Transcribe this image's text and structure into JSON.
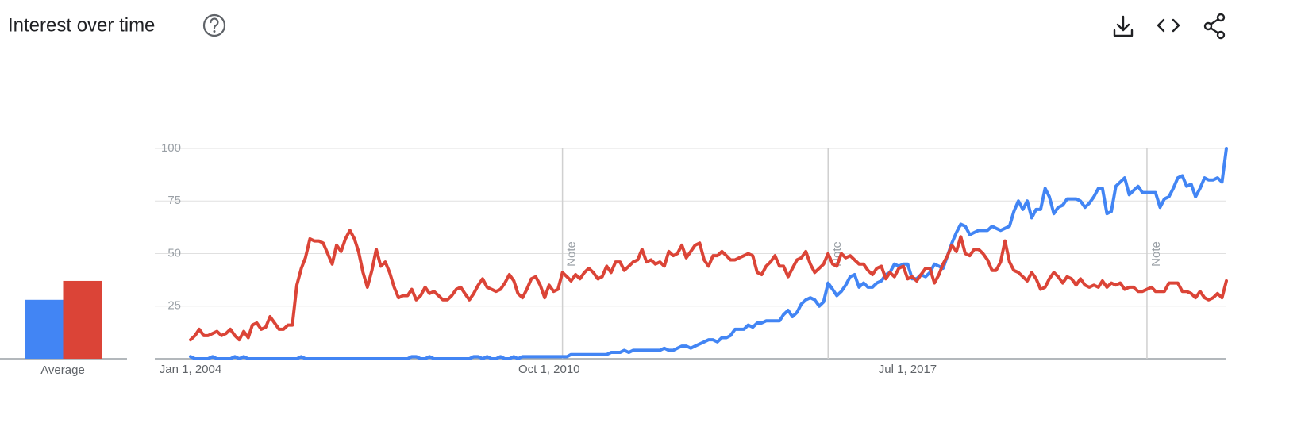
{
  "chart_data": {
    "type": "line",
    "title": "Interest over time",
    "x": [
      "2004-01-01",
      "2004-02-01",
      "2004-03-01",
      "2004-04-01",
      "2004-05-01",
      "2004-06-01",
      "2004-07-01",
      "2004-08-01",
      "2004-09-01",
      "2004-10-01",
      "2004-11-01",
      "2004-12-01",
      "2005-01-01",
      "2005-02-01",
      "2005-03-01",
      "2005-04-01",
      "2005-05-01",
      "2005-06-01",
      "2005-07-01",
      "2005-08-01",
      "2005-09-01",
      "2005-10-01",
      "2005-11-01",
      "2005-12-01",
      "2006-01-01",
      "2006-02-01",
      "2006-03-01",
      "2006-04-01",
      "2006-05-01",
      "2006-06-01",
      "2006-07-01",
      "2006-08-01",
      "2006-09-01",
      "2006-10-01",
      "2006-11-01",
      "2006-12-01",
      "2007-01-01",
      "2007-02-01",
      "2007-03-01",
      "2007-04-01",
      "2007-05-01",
      "2007-06-01",
      "2007-07-01",
      "2007-08-01",
      "2007-09-01",
      "2007-10-01",
      "2007-11-01",
      "2007-12-01",
      "2008-01-01",
      "2008-02-01",
      "2008-03-01",
      "2008-04-01",
      "2008-05-01",
      "2008-06-01",
      "2008-07-01",
      "2008-08-01",
      "2008-09-01",
      "2008-10-01",
      "2008-11-01",
      "2008-12-01",
      "2009-01-01",
      "2009-02-01",
      "2009-03-01",
      "2009-04-01",
      "2009-05-01",
      "2009-06-01",
      "2009-07-01",
      "2009-08-01",
      "2009-09-01",
      "2009-10-01",
      "2009-11-01",
      "2009-12-01",
      "2010-01-01",
      "2010-02-01",
      "2010-03-01",
      "2010-04-01",
      "2010-05-01",
      "2010-06-01",
      "2010-07-01",
      "2010-08-01",
      "2010-09-01",
      "2010-10-01",
      "2010-11-01",
      "2010-12-01",
      "2011-01-01",
      "2011-02-01",
      "2011-03-01",
      "2011-04-01",
      "2011-05-01",
      "2011-06-01",
      "2011-07-01",
      "2011-08-01",
      "2011-09-01",
      "2011-10-01",
      "2011-11-01",
      "2011-12-01",
      "2012-01-01",
      "2012-02-01",
      "2012-03-01",
      "2012-04-01",
      "2012-05-01",
      "2012-06-01",
      "2012-07-01",
      "2012-08-01",
      "2012-09-01",
      "2012-10-01",
      "2012-11-01",
      "2012-12-01",
      "2013-01-01",
      "2013-02-01",
      "2013-03-01",
      "2013-04-01",
      "2013-05-01",
      "2013-06-01",
      "2013-07-01",
      "2013-08-01",
      "2013-09-01",
      "2013-10-01",
      "2013-11-01",
      "2013-12-01",
      "2014-01-01",
      "2014-02-01",
      "2014-03-01",
      "2014-04-01",
      "2014-05-01",
      "2014-06-01",
      "2014-07-01",
      "2014-08-01",
      "2014-09-01",
      "2014-10-01",
      "2014-11-01",
      "2014-12-01",
      "2015-01-01",
      "2015-02-01",
      "2015-03-01",
      "2015-04-01",
      "2015-05-01",
      "2015-06-01",
      "2015-07-01",
      "2015-08-01",
      "2015-09-01",
      "2015-10-01",
      "2015-11-01",
      "2015-12-01",
      "2016-01-01",
      "2016-02-01",
      "2016-03-01",
      "2016-04-01",
      "2016-05-01",
      "2016-06-01",
      "2016-07-01",
      "2016-08-01",
      "2016-09-01",
      "2016-10-01",
      "2016-11-01",
      "2016-12-01",
      "2017-01-01",
      "2017-02-01",
      "2017-03-01",
      "2017-04-01",
      "2017-05-01",
      "2017-06-01",
      "2017-07-01",
      "2017-08-01",
      "2017-09-01",
      "2017-10-01",
      "2017-11-01",
      "2017-12-01",
      "2018-01-01",
      "2018-02-01",
      "2018-03-01",
      "2018-04-01",
      "2018-05-01",
      "2018-06-01",
      "2018-07-01",
      "2018-08-01",
      "2018-09-01",
      "2018-10-01",
      "2018-11-01",
      "2018-12-01",
      "2019-01-01",
      "2019-02-01",
      "2019-03-01",
      "2019-04-01",
      "2019-05-01",
      "2019-06-01",
      "2019-07-01",
      "2019-08-01",
      "2019-09-01",
      "2019-10-01",
      "2019-11-01",
      "2019-12-01",
      "2020-01-01",
      "2020-02-01",
      "2020-03-01",
      "2020-04-01",
      "2020-05-01",
      "2020-06-01",
      "2020-07-01",
      "2020-08-01",
      "2020-09-01",
      "2020-10-01",
      "2020-11-01",
      "2020-12-01",
      "2021-01-01",
      "2021-02-01",
      "2021-03-01",
      "2021-04-01",
      "2021-05-01",
      "2021-06-01",
      "2021-07-01",
      "2021-08-01",
      "2021-09-01",
      "2021-10-01",
      "2021-11-01",
      "2021-12-01",
      "2022-01-01",
      "2022-02-01",
      "2022-03-01",
      "2022-04-01",
      "2022-05-01",
      "2022-06-01",
      "2022-07-01",
      "2022-08-01",
      "2022-09-01",
      "2022-10-01",
      "2022-11-01",
      "2022-12-01",
      "2023-01-01",
      "2023-02-01",
      "2023-03-01",
      "2023-04-01",
      "2023-05-01",
      "2023-06-01",
      "2023-07-01"
    ],
    "series": [
      {
        "color": "#4285f4",
        "values": [
          1,
          0,
          0,
          0,
          0,
          1,
          0,
          0,
          0,
          0,
          1,
          0,
          1,
          0,
          0,
          0,
          0,
          0,
          0,
          0,
          0,
          0,
          0,
          0,
          0,
          1,
          0,
          0,
          0,
          0,
          0,
          0,
          0,
          0,
          0,
          0,
          0,
          0,
          0,
          0,
          0,
          0,
          0,
          0,
          0,
          0,
          0,
          0,
          0,
          0,
          1,
          1,
          0,
          0,
          1,
          0,
          0,
          0,
          0,
          0,
          0,
          0,
          0,
          0,
          1,
          1,
          0,
          1,
          0,
          0,
          1,
          0,
          0,
          1,
          0,
          1,
          1,
          1,
          1,
          1,
          1,
          1,
          1,
          1,
          1,
          1,
          2,
          2,
          2,
          2,
          2,
          2,
          2,
          2,
          2,
          3,
          3,
          3,
          4,
          3,
          4,
          4,
          4,
          4,
          4,
          4,
          4,
          5,
          4,
          4,
          5,
          6,
          6,
          5,
          6,
          7,
          8,
          9,
          9,
          8,
          10,
          10,
          11,
          14,
          14,
          14,
          16,
          15,
          17,
          17,
          18,
          18,
          18,
          18,
          21,
          23,
          20,
          22,
          26,
          28,
          29,
          28,
          25,
          27,
          36,
          33,
          30,
          32,
          35,
          39,
          40,
          34,
          36,
          34,
          34,
          36,
          37,
          40,
          41,
          45,
          44,
          45,
          45,
          38,
          38,
          40,
          39,
          41,
          45,
          44,
          43,
          49,
          55,
          60,
          64,
          63,
          59,
          60,
          61,
          61,
          61,
          63,
          62,
          61,
          62,
          63,
          70,
          75,
          71,
          75,
          67,
          71,
          71,
          81,
          77,
          69,
          72,
          73,
          76,
          76,
          76,
          75,
          72,
          74,
          77,
          81,
          81,
          69,
          70,
          82,
          84,
          86,
          78,
          80,
          82,
          79,
          79,
          79,
          79,
          72,
          76,
          77,
          81,
          86,
          87,
          82,
          83,
          77,
          81,
          86,
          85,
          85,
          86,
          84,
          100
        ]
      },
      {
        "color": "#db4437",
        "values": [
          9,
          11,
          14,
          11,
          11,
          12,
          13,
          11,
          12,
          14,
          11,
          9,
          13,
          10,
          16,
          17,
          14,
          15,
          20,
          17,
          14,
          14,
          16,
          16,
          35,
          43,
          48,
          57,
          56,
          56,
          55,
          50,
          45,
          54,
          51,
          57,
          61,
          57,
          51,
          41,
          34,
          42,
          52,
          44,
          46,
          41,
          34,
          29,
          30,
          30,
          33,
          28,
          30,
          34,
          31,
          32,
          30,
          28,
          28,
          30,
          33,
          34,
          31,
          28,
          31,
          35,
          38,
          34,
          33,
          32,
          33,
          36,
          40,
          37,
          31,
          29,
          33,
          38,
          39,
          35,
          29,
          35,
          32,
          33,
          41,
          39,
          37,
          40,
          38,
          41,
          43,
          41,
          38,
          39,
          44,
          41,
          46,
          46,
          42,
          44,
          46,
          47,
          52,
          46,
          47,
          45,
          46,
          44,
          51,
          49,
          50,
          54,
          48,
          51,
          54,
          55,
          47,
          44,
          49,
          49,
          51,
          49,
          47,
          47,
          48,
          49,
          50,
          49,
          41,
          40,
          44,
          46,
          49,
          44,
          44,
          39,
          43,
          47,
          48,
          51,
          45,
          41,
          43,
          45,
          50,
          45,
          44,
          50,
          48,
          49,
          47,
          45,
          45,
          42,
          40,
          43,
          44,
          38,
          41,
          39,
          43,
          44,
          38,
          39,
          37,
          40,
          43,
          43,
          36,
          40,
          45,
          49,
          54,
          51,
          58,
          50,
          49,
          52,
          52,
          50,
          47,
          42,
          42,
          46,
          56,
          46,
          42,
          41,
          39,
          37,
          41,
          38,
          33,
          34,
          38,
          41,
          39,
          36,
          39,
          38,
          35,
          38,
          35,
          34,
          35,
          34,
          37,
          34,
          36,
          35,
          36,
          33,
          34,
          34,
          32,
          32,
          33,
          34,
          32,
          32,
          32,
          36,
          36,
          36,
          32,
          32,
          31,
          29,
          32,
          29,
          28,
          29,
          31,
          29,
          37
        ]
      }
    ],
    "xlim": [
      "2004-01-01",
      "2023-07-01"
    ],
    "xticks": [
      {
        "value": "2004-01-01",
        "label": "Jan 1, 2004"
      },
      {
        "value": "2010-10-01",
        "label": "Oct 1, 2010"
      },
      {
        "value": "2017-07-01",
        "label": "Jul 1, 2017"
      }
    ],
    "ylim": [
      0,
      100
    ],
    "yticks": [
      25,
      50,
      75,
      100
    ],
    "grid": true,
    "notes": [
      {
        "x": "2011-01-01",
        "label": "Note"
      },
      {
        "x": "2016-01-01",
        "label": "Note"
      },
      {
        "x": "2022-01-01",
        "label": "Note"
      }
    ],
    "average_label": "Average",
    "averages": [
      28,
      37
    ]
  }
}
